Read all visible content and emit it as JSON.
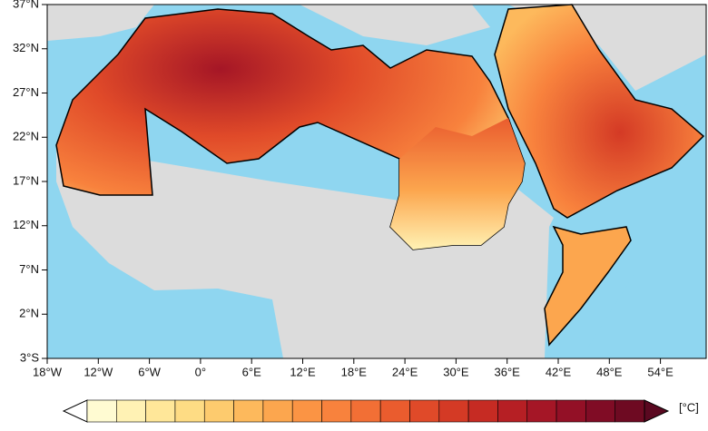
{
  "map": {
    "lat_labels": [
      "37°N",
      "32°N",
      "27°N",
      "22°N",
      "17°N",
      "12°N",
      "7°N",
      "2°N",
      "3°S"
    ],
    "lon_labels": [
      "18°W",
      "12°W",
      "6°W",
      "0°",
      "6°E",
      "12°E",
      "18°E",
      "24°E",
      "30°E",
      "36°E",
      "42°E",
      "48°E",
      "54°E"
    ]
  },
  "colorbar": {
    "unit": "[°C]",
    "colors": [
      "#fffbd2",
      "#fff2b4",
      "#ffe799",
      "#fedc84",
      "#fdcb6e",
      "#fdb95c",
      "#fca64e",
      "#fb9444",
      "#f8823d",
      "#f26f35",
      "#ea5c2e",
      "#e04a29",
      "#d43a25",
      "#c62b23",
      "#b61f24",
      "#a51626",
      "#931026",
      "#800c25",
      "#6e0a22"
    ]
  }
}
